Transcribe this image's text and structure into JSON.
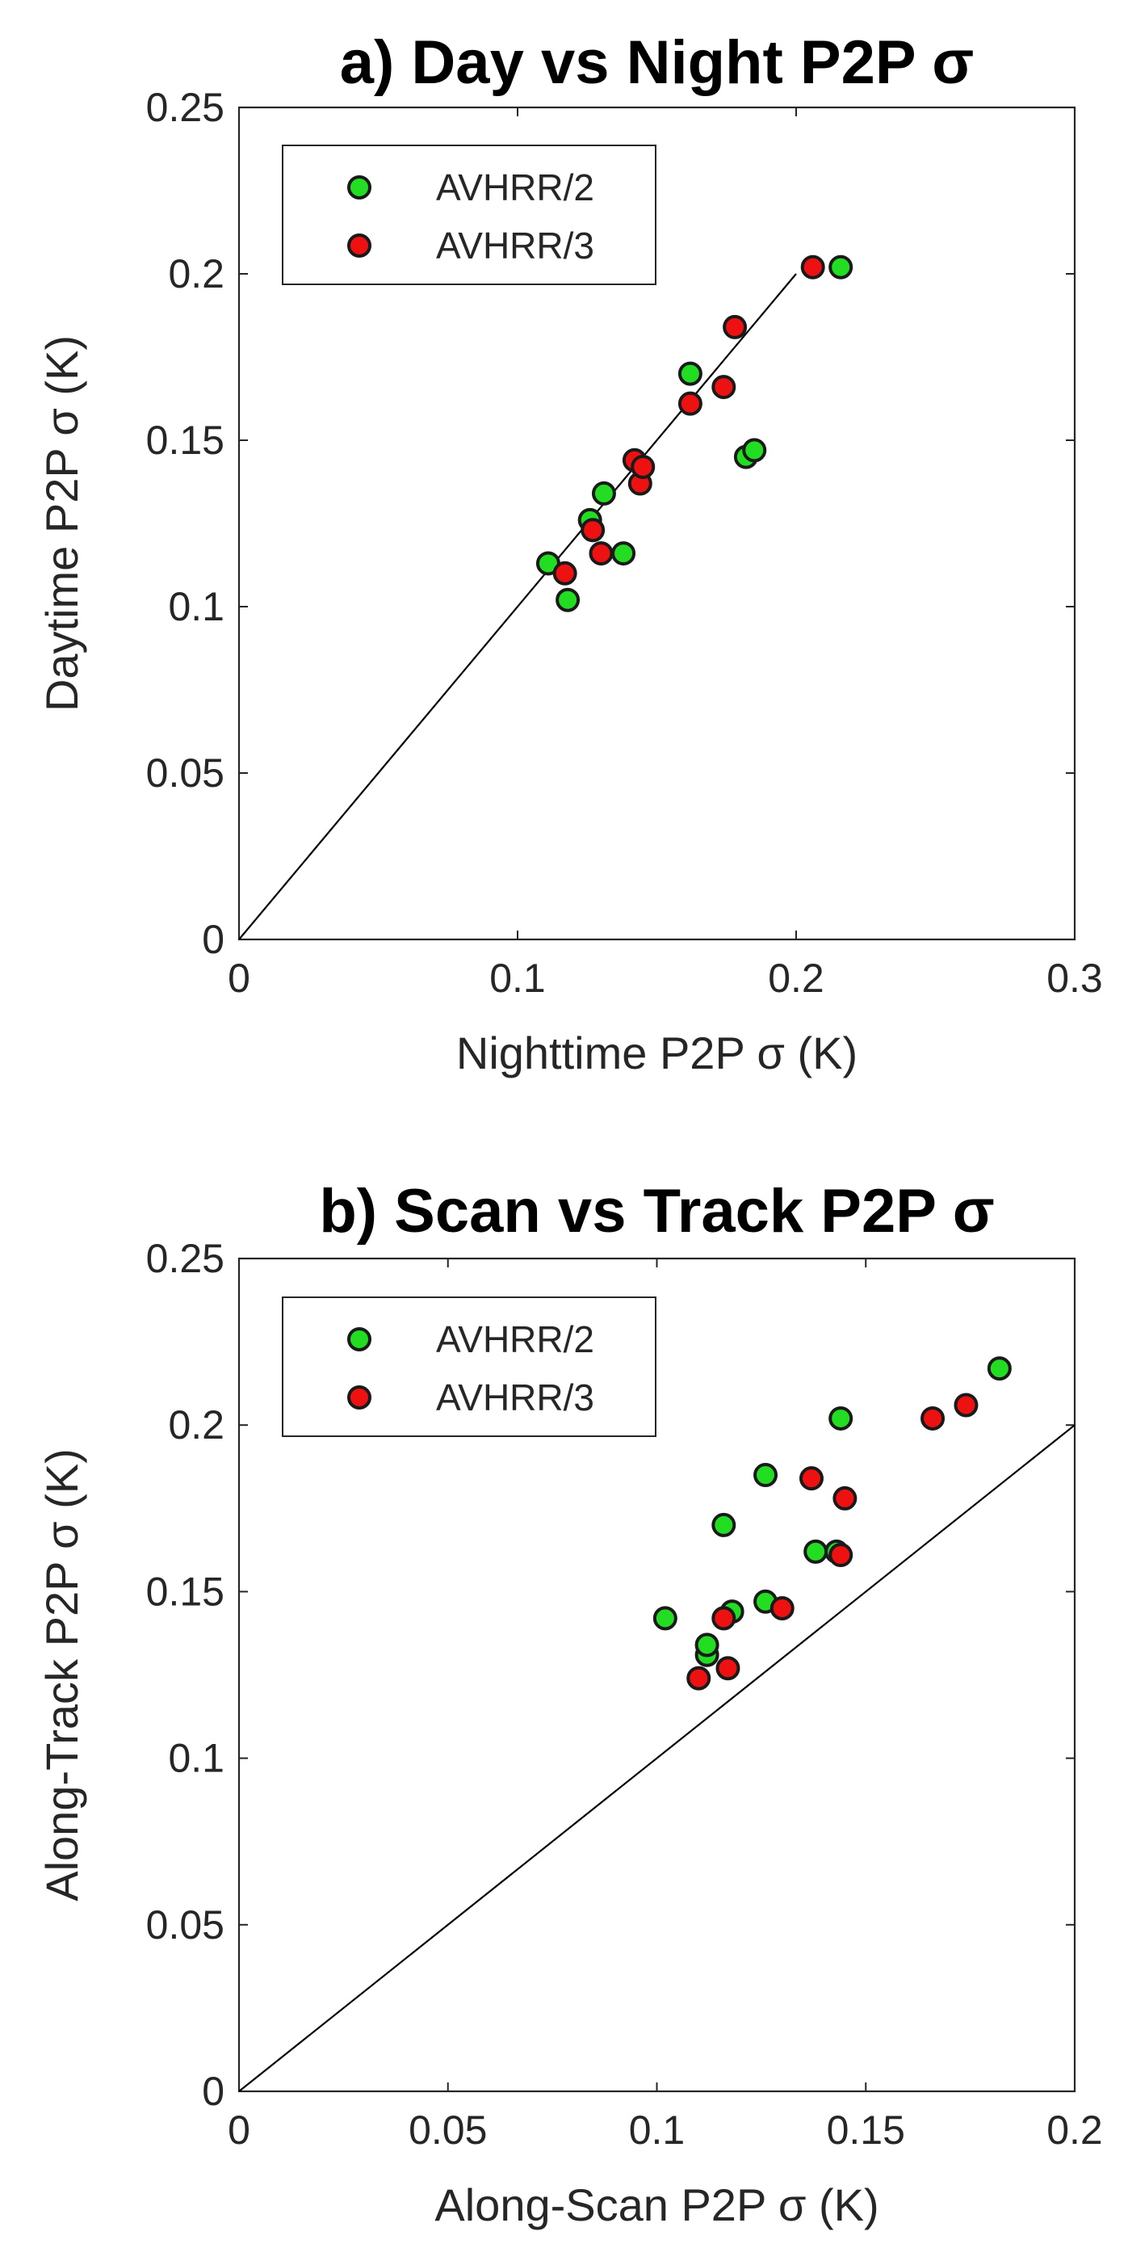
{
  "chart_data": [
    {
      "type": "scatter",
      "title": "a) Day vs Night P2P σ",
      "xlabel": "Nighttime P2P σ (K)",
      "ylabel": "Daytime P2P σ (K)",
      "xlim": [
        0,
        0.3
      ],
      "ylim": [
        0,
        0.25
      ],
      "xticks": [
        0,
        0.1,
        0.2,
        0.3
      ],
      "xtick_labels": [
        "0",
        "0.1",
        "0.2",
        "0.3"
      ],
      "yticks": [
        0,
        0.05,
        0.1,
        0.15,
        0.2,
        0.25
      ],
      "ytick_labels": [
        "0",
        "0.05",
        "0.1",
        "0.15",
        "0.2",
        "0.25"
      ],
      "legend": "top-left",
      "grid": false,
      "reference_line": {
        "x": [
          0,
          0.2
        ],
        "y": [
          0,
          0.2
        ]
      },
      "series": [
        {
          "name": "AVHRR/2",
          "color": "#22dd22",
          "points": [
            [
              0.111,
              0.113
            ],
            [
              0.118,
              0.102
            ],
            [
              0.126,
              0.126
            ],
            [
              0.131,
              0.134
            ],
            [
              0.138,
              0.116
            ],
            [
              0.162,
              0.17
            ],
            [
              0.182,
              0.145
            ],
            [
              0.185,
              0.147
            ],
            [
              0.216,
              0.202
            ]
          ]
        },
        {
          "name": "AVHRR/3",
          "color": "#ee1111",
          "points": [
            [
              0.117,
              0.11
            ],
            [
              0.127,
              0.123
            ],
            [
              0.13,
              0.116
            ],
            [
              0.142,
              0.144
            ],
            [
              0.144,
              0.137
            ],
            [
              0.145,
              0.142
            ],
            [
              0.162,
              0.161
            ],
            [
              0.174,
              0.166
            ],
            [
              0.178,
              0.184
            ],
            [
              0.206,
              0.202
            ]
          ]
        }
      ]
    },
    {
      "type": "scatter",
      "title": "b) Scan vs Track P2P σ",
      "xlabel": "Along-Scan P2P σ (K)",
      "ylabel": "Along-Track P2P σ (K)",
      "xlim": [
        0,
        0.2
      ],
      "ylim": [
        0,
        0.25
      ],
      "xticks": [
        0,
        0.05,
        0.1,
        0.15,
        0.2
      ],
      "xtick_labels": [
        "0",
        "0.05",
        "0.1",
        "0.15",
        "0.2"
      ],
      "yticks": [
        0,
        0.05,
        0.1,
        0.15,
        0.2,
        0.25
      ],
      "ytick_labels": [
        "0",
        "0.05",
        "0.1",
        "0.15",
        "0.2",
        "0.25"
      ],
      "legend": "top-left",
      "grid": false,
      "reference_line": {
        "x": [
          0,
          0.2
        ],
        "y": [
          0,
          0.2
        ]
      },
      "series": [
        {
          "name": "AVHRR/2",
          "color": "#22dd22",
          "points": [
            [
              0.102,
              0.142
            ],
            [
              0.112,
              0.131
            ],
            [
              0.112,
              0.134
            ],
            [
              0.116,
              0.17
            ],
            [
              0.118,
              0.144
            ],
            [
              0.126,
              0.147
            ],
            [
              0.126,
              0.185
            ],
            [
              0.138,
              0.162
            ],
            [
              0.143,
              0.162
            ],
            [
              0.144,
              0.202
            ],
            [
              0.182,
              0.217
            ]
          ]
        },
        {
          "name": "AVHRR/3",
          "color": "#ee1111",
          "points": [
            [
              0.11,
              0.124
            ],
            [
              0.116,
              0.142
            ],
            [
              0.117,
              0.127
            ],
            [
              0.13,
              0.145
            ],
            [
              0.137,
              0.184
            ],
            [
              0.144,
              0.161
            ],
            [
              0.145,
              0.178
            ],
            [
              0.166,
              0.202
            ],
            [
              0.174,
              0.206
            ]
          ]
        }
      ]
    }
  ]
}
